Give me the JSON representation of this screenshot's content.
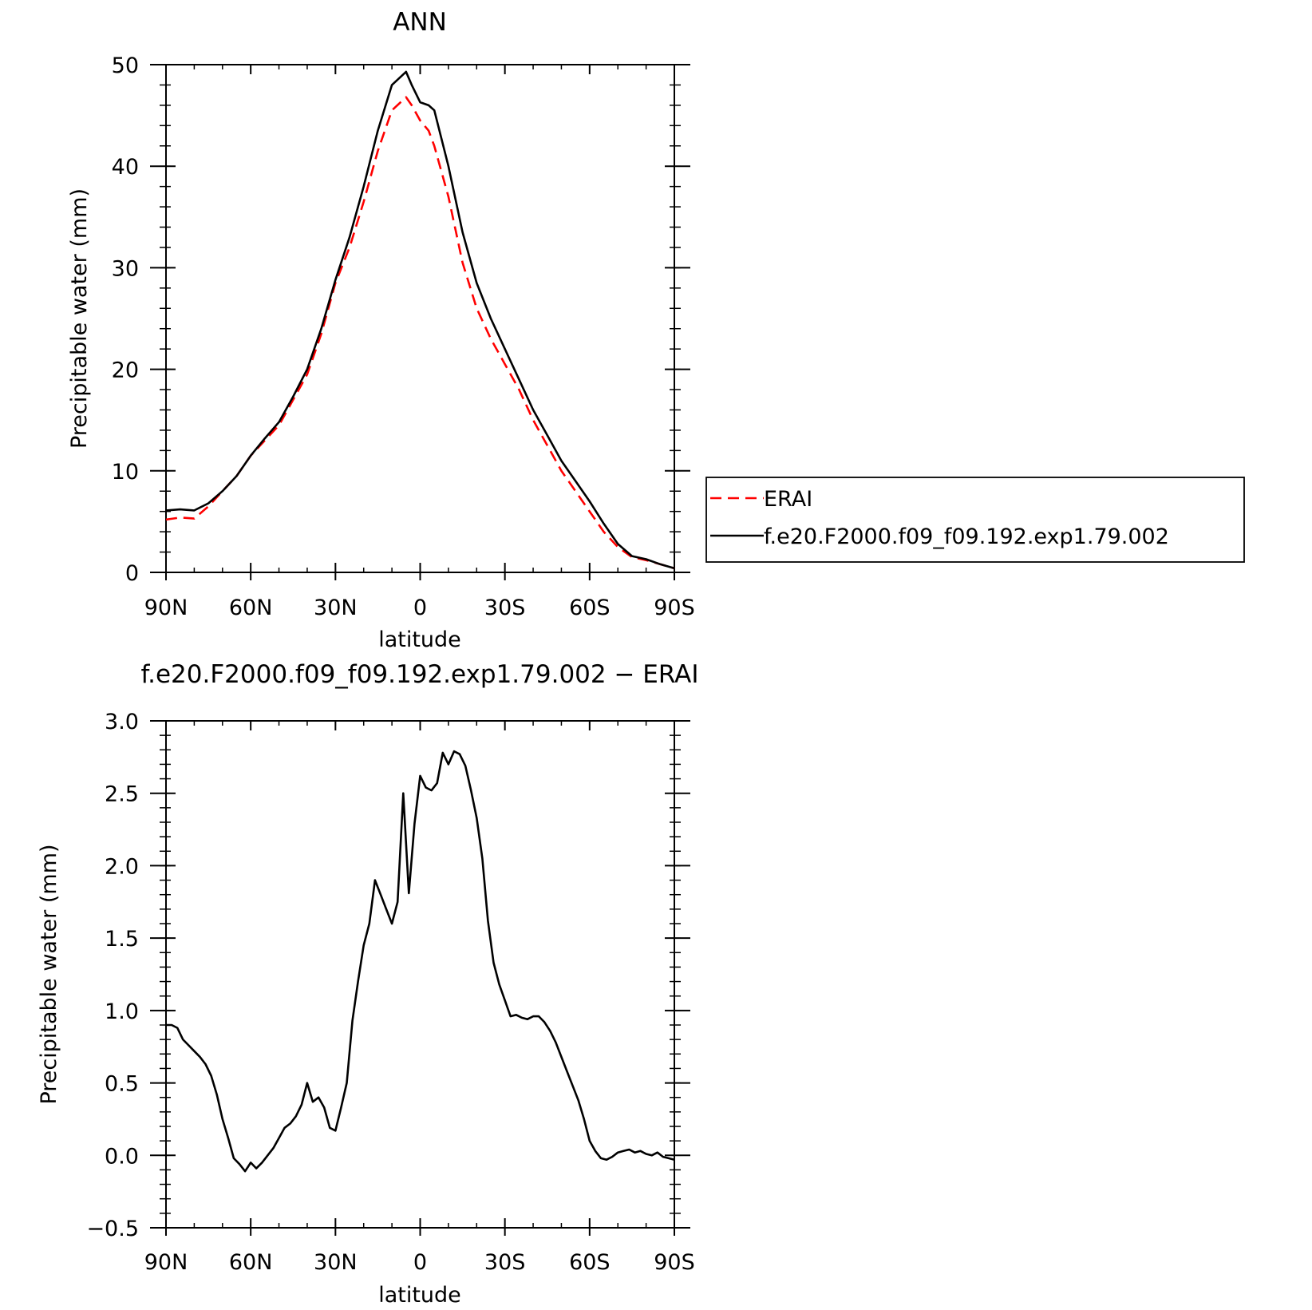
{
  "chart_data": [
    {
      "type": "line",
      "title": "ANN",
      "xlabel": "latitude",
      "ylabel": "Precipitable water (mm)",
      "x_tick_labels": [
        "90N",
        "60N",
        "30N",
        "0",
        "30S",
        "60S",
        "90S"
      ],
      "x_tick_values": [
        90,
        60,
        30,
        0,
        -30,
        -60,
        -90
      ],
      "y_tick_labels": [
        "0",
        "10",
        "20",
        "30",
        "40",
        "50"
      ],
      "y_tick_values": [
        0,
        10,
        20,
        30,
        40,
        50
      ],
      "xlim": [
        90,
        -90
      ],
      "ylim": [
        0,
        50
      ],
      "legend": "right",
      "grid": false,
      "series": [
        {
          "name": "ERAI",
          "color": "#ff0000",
          "dash": true,
          "x": [
            90,
            85,
            80,
            75,
            70,
            65,
            60,
            55,
            50,
            45,
            40,
            35,
            30,
            25,
            20,
            15,
            10,
            5,
            3,
            0,
            -3,
            -5,
            -10,
            -15,
            -20,
            -25,
            -30,
            -35,
            -40,
            -45,
            -50,
            -55,
            -60,
            -65,
            -70,
            -75,
            -80,
            -85,
            -90
          ],
          "y": [
            5.2,
            5.4,
            5.3,
            6.5,
            8.0,
            9.5,
            11.5,
            13.0,
            14.5,
            17.0,
            19.5,
            23.5,
            28.5,
            32.0,
            36.5,
            41.5,
            45.5,
            46.8,
            46.0,
            44.5,
            43.5,
            42.0,
            37.0,
            30.5,
            26.0,
            23.0,
            20.5,
            18.0,
            15.0,
            12.5,
            10.0,
            8.0,
            6.0,
            4.0,
            2.5,
            1.5,
            1.2,
            0.8,
            0.4
          ]
        },
        {
          "name": "f.e20.F2000.f09_f09.192.exp1.79.002",
          "color": "#000000",
          "dash": false,
          "x": [
            90,
            85,
            80,
            75,
            70,
            65,
            60,
            55,
            50,
            45,
            40,
            35,
            30,
            25,
            20,
            15,
            10,
            5,
            3,
            0,
            -3,
            -5,
            -10,
            -15,
            -20,
            -25,
            -30,
            -35,
            -40,
            -45,
            -50,
            -55,
            -60,
            -65,
            -70,
            -75,
            -80,
            -85,
            -90
          ],
          "y": [
            6.1,
            6.2,
            6.1,
            6.8,
            8.0,
            9.5,
            11.5,
            13.2,
            14.8,
            17.3,
            20.0,
            24.0,
            28.8,
            33.0,
            38.0,
            43.5,
            48.0,
            49.3,
            48.0,
            46.3,
            46.0,
            45.5,
            40.0,
            33.5,
            28.5,
            25.0,
            22.0,
            19.0,
            16.0,
            13.5,
            11.0,
            9.0,
            7.0,
            4.8,
            2.8,
            1.6,
            1.3,
            0.8,
            0.4
          ]
        }
      ]
    },
    {
      "type": "line",
      "title": "f.e20.F2000.f09_f09.192.exp1.79.002 − ERAI",
      "xlabel": "latitude",
      "ylabel": "Precipitable water (mm)",
      "x_tick_labels": [
        "90N",
        "60N",
        "30N",
        "0",
        "30S",
        "60S",
        "90S"
      ],
      "x_tick_values": [
        90,
        60,
        30,
        0,
        -30,
        -60,
        -90
      ],
      "y_tick_labels": [
        "−0.5",
        "0.0",
        "0.5",
        "1.0",
        "1.5",
        "2.0",
        "2.5",
        "3.0"
      ],
      "y_tick_values": [
        -0.5,
        0,
        0.5,
        1.0,
        1.5,
        2.0,
        2.5,
        3.0
      ],
      "xlim": [
        90,
        -90
      ],
      "ylim": [
        -0.5,
        3.0
      ],
      "grid": false,
      "series": [
        {
          "color": "#000000",
          "dash": false,
          "x": [
            90,
            88,
            86,
            84,
            82,
            80,
            78,
            76,
            74,
            72,
            70,
            68,
            66,
            64,
            62,
            60,
            58,
            56,
            54,
            52,
            50,
            48,
            46,
            44,
            42,
            40,
            38,
            36,
            34,
            32,
            30,
            28,
            26,
            24,
            22,
            20,
            18,
            16,
            14,
            12,
            10,
            8,
            6,
            4,
            2,
            0,
            -2,
            -4,
            -6,
            -8,
            -10,
            -12,
            -14,
            -16,
            -18,
            -20,
            -22,
            -24,
            -26,
            -28,
            -30,
            -32,
            -34,
            -36,
            -38,
            -40,
            -42,
            -44,
            -46,
            -48,
            -50,
            -52,
            -54,
            -56,
            -58,
            -60,
            -62,
            -64,
            -66,
            -68,
            -70,
            -72,
            -74,
            -76,
            -78,
            -80,
            -82,
            -84,
            -86,
            -88,
            -90
          ],
          "y": [
            0.9,
            0.9,
            0.88,
            0.8,
            0.76,
            0.72,
            0.68,
            0.63,
            0.55,
            0.42,
            0.25,
            0.12,
            -0.02,
            -0.06,
            -0.11,
            -0.05,
            -0.09,
            -0.05,
            0.0,
            0.05,
            0.12,
            0.19,
            0.22,
            0.27,
            0.35,
            0.5,
            0.37,
            0.4,
            0.33,
            0.19,
            0.17,
            0.33,
            0.5,
            0.93,
            1.2,
            1.45,
            1.6,
            1.9,
            1.8,
            1.7,
            1.6,
            1.75,
            2.5,
            1.81,
            2.29,
            2.62,
            2.54,
            2.52,
            2.57,
            2.78,
            2.7,
            2.79,
            2.77,
            2.69,
            2.52,
            2.33,
            2.05,
            1.62,
            1.33,
            1.18,
            1.07,
            0.96,
            0.97,
            0.95,
            0.94,
            0.96,
            0.96,
            0.92,
            0.86,
            0.78,
            0.68,
            0.58,
            0.48,
            0.38,
            0.25,
            0.1,
            0.03,
            -0.02,
            -0.03,
            -0.01,
            0.02,
            0.03,
            0.04,
            0.02,
            0.03,
            0.01,
            0.0,
            0.02,
            -0.01,
            -0.02,
            -0.03
          ]
        }
      ]
    }
  ]
}
